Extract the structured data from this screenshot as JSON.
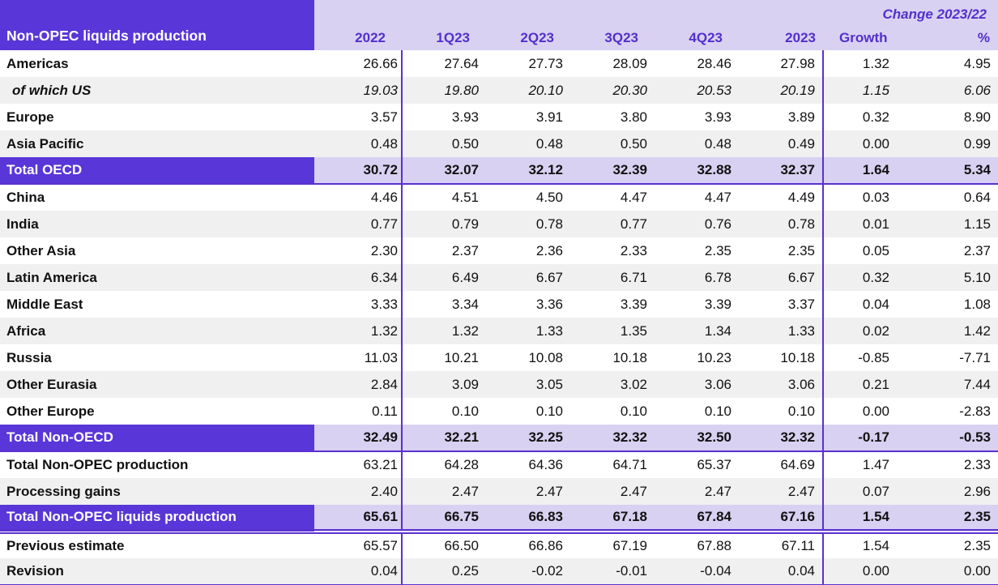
{
  "table": {
    "title": "Non-OPEC liquids production",
    "change_header": "Change 2023/22",
    "columns": [
      "2022",
      "1Q23",
      "2Q23",
      "3Q23",
      "4Q23",
      "2023",
      "Growth",
      "%"
    ],
    "rows": [
      {
        "label": "Americas",
        "style": "plain",
        "rule": "none",
        "values": [
          "26.66",
          "27.64",
          "27.73",
          "28.09",
          "28.46",
          "27.98",
          "1.32",
          "4.95"
        ]
      },
      {
        "label": "of which US",
        "style": "sub",
        "rule": "none",
        "values": [
          "19.03",
          "19.80",
          "20.10",
          "20.30",
          "20.53",
          "20.19",
          "1.15",
          "6.06"
        ]
      },
      {
        "label": "Europe",
        "style": "plain",
        "rule": "none",
        "values": [
          "3.57",
          "3.93",
          "3.91",
          "3.80",
          "3.93",
          "3.89",
          "0.32",
          "8.90"
        ]
      },
      {
        "label": "Asia Pacific",
        "style": "stripe",
        "rule": "none",
        "values": [
          "0.48",
          "0.50",
          "0.48",
          "0.50",
          "0.48",
          "0.49",
          "0.00",
          "0.99"
        ]
      },
      {
        "label": "Total OECD",
        "style": "total",
        "rule": "solid",
        "values": [
          "30.72",
          "32.07",
          "32.12",
          "32.39",
          "32.88",
          "32.37",
          "1.64",
          "5.34"
        ]
      },
      {
        "label": "China",
        "style": "plain",
        "rule": "none",
        "values": [
          "4.46",
          "4.51",
          "4.50",
          "4.47",
          "4.47",
          "4.49",
          "0.03",
          "0.64"
        ]
      },
      {
        "label": "India",
        "style": "stripe",
        "rule": "none",
        "values": [
          "0.77",
          "0.79",
          "0.78",
          "0.77",
          "0.76",
          "0.78",
          "0.01",
          "1.15"
        ]
      },
      {
        "label": "Other Asia",
        "style": "plain",
        "rule": "none",
        "values": [
          "2.30",
          "2.37",
          "2.36",
          "2.33",
          "2.35",
          "2.35",
          "0.05",
          "2.37"
        ]
      },
      {
        "label": "Latin America",
        "style": "stripe",
        "rule": "none",
        "values": [
          "6.34",
          "6.49",
          "6.67",
          "6.71",
          "6.78",
          "6.67",
          "0.32",
          "5.10"
        ]
      },
      {
        "label": "Middle East",
        "style": "plain",
        "rule": "none",
        "values": [
          "3.33",
          "3.34",
          "3.36",
          "3.39",
          "3.39",
          "3.37",
          "0.04",
          "1.08"
        ]
      },
      {
        "label": "Africa",
        "style": "stripe",
        "rule": "none",
        "values": [
          "1.32",
          "1.32",
          "1.33",
          "1.35",
          "1.34",
          "1.33",
          "0.02",
          "1.42"
        ]
      },
      {
        "label": "Russia",
        "style": "plain",
        "rule": "none",
        "values": [
          "11.03",
          "10.21",
          "10.08",
          "10.18",
          "10.23",
          "10.18",
          "-0.85",
          "-7.71"
        ]
      },
      {
        "label": "Other Eurasia",
        "style": "stripe",
        "rule": "none",
        "values": [
          "2.84",
          "3.09",
          "3.05",
          "3.02",
          "3.06",
          "3.06",
          "0.21",
          "7.44"
        ]
      },
      {
        "label": "Other Europe",
        "style": "plain",
        "rule": "none",
        "values": [
          "0.11",
          "0.10",
          "0.10",
          "0.10",
          "0.10",
          "0.10",
          "0.00",
          "-2.83"
        ]
      },
      {
        "label": "Total Non-OECD",
        "style": "total",
        "rule": "solid",
        "values": [
          "32.49",
          "32.21",
          "32.25",
          "32.32",
          "32.50",
          "32.32",
          "-0.17",
          "-0.53"
        ]
      },
      {
        "label": "Total Non-OPEC production",
        "style": "plain",
        "rule": "none",
        "values": [
          "63.21",
          "64.28",
          "64.36",
          "64.71",
          "65.37",
          "64.69",
          "1.47",
          "2.33"
        ]
      },
      {
        "label": "Processing gains",
        "style": "stripe",
        "rule": "none",
        "values": [
          "2.40",
          "2.47",
          "2.47",
          "2.47",
          "2.47",
          "2.47",
          "0.07",
          "2.96"
        ]
      },
      {
        "label": "Total Non-OPEC liquids production",
        "style": "total",
        "rule": "double",
        "values": [
          "65.61",
          "66.75",
          "66.83",
          "67.18",
          "67.84",
          "67.16",
          "1.54",
          "2.35"
        ]
      },
      {
        "label": "Previous estimate",
        "style": "plain",
        "rule": "none",
        "values": [
          "65.57",
          "66.50",
          "66.86",
          "67.19",
          "67.88",
          "67.11",
          "1.54",
          "2.35"
        ]
      },
      {
        "label": "Revision",
        "style": "stripe",
        "rule": "none",
        "values": [
          "0.04",
          "0.25",
          "-0.02",
          "-0.01",
          "-0.04",
          "0.04",
          "0.00",
          "0.00"
        ]
      }
    ],
    "colors": {
      "header_purple": "#5836d8",
      "lavender": "#d9d1f1",
      "stripe_gray": "#f0f0f0",
      "line_purple": "#5b30cf",
      "header_text_purple": "#5230cc"
    }
  },
  "chart_data": {
    "type": "table",
    "title": "Non-OPEC liquids production",
    "column_group_header": "Change 2023/22 (spans Growth and %)",
    "columns": [
      "2022",
      "1Q23",
      "2Q23",
      "3Q23",
      "4Q23",
      "2023",
      "Growth",
      "%"
    ],
    "rows": [
      {
        "label": "Americas",
        "values": [
          26.66,
          27.64,
          27.73,
          28.09,
          28.46,
          27.98,
          1.32,
          4.95
        ]
      },
      {
        "label": "of which US",
        "values": [
          19.03,
          19.8,
          20.1,
          20.3,
          20.53,
          20.19,
          1.15,
          6.06
        ]
      },
      {
        "label": "Europe",
        "values": [
          3.57,
          3.93,
          3.91,
          3.8,
          3.93,
          3.89,
          0.32,
          8.9
        ]
      },
      {
        "label": "Asia Pacific",
        "values": [
          0.48,
          0.5,
          0.48,
          0.5,
          0.48,
          0.49,
          0.0,
          0.99
        ]
      },
      {
        "label": "Total OECD",
        "values": [
          30.72,
          32.07,
          32.12,
          32.39,
          32.88,
          32.37,
          1.64,
          5.34
        ]
      },
      {
        "label": "China",
        "values": [
          4.46,
          4.51,
          4.5,
          4.47,
          4.47,
          4.49,
          0.03,
          0.64
        ]
      },
      {
        "label": "India",
        "values": [
          0.77,
          0.79,
          0.78,
          0.77,
          0.76,
          0.78,
          0.01,
          1.15
        ]
      },
      {
        "label": "Other Asia",
        "values": [
          2.3,
          2.37,
          2.36,
          2.33,
          2.35,
          2.35,
          0.05,
          2.37
        ]
      },
      {
        "label": "Latin America",
        "values": [
          6.34,
          6.49,
          6.67,
          6.71,
          6.78,
          6.67,
          0.32,
          5.1
        ]
      },
      {
        "label": "Middle East",
        "values": [
          3.33,
          3.34,
          3.36,
          3.39,
          3.39,
          3.37,
          0.04,
          1.08
        ]
      },
      {
        "label": "Africa",
        "values": [
          1.32,
          1.32,
          1.33,
          1.35,
          1.34,
          1.33,
          0.02,
          1.42
        ]
      },
      {
        "label": "Russia",
        "values": [
          11.03,
          10.21,
          10.08,
          10.18,
          10.23,
          10.18,
          -0.85,
          -7.71
        ]
      },
      {
        "label": "Other Eurasia",
        "values": [
          2.84,
          3.09,
          3.05,
          3.02,
          3.06,
          3.06,
          0.21,
          7.44
        ]
      },
      {
        "label": "Other Europe",
        "values": [
          0.11,
          0.1,
          0.1,
          0.1,
          0.1,
          0.1,
          0.0,
          -2.83
        ]
      },
      {
        "label": "Total Non-OECD",
        "values": [
          32.49,
          32.21,
          32.25,
          32.32,
          32.5,
          32.32,
          -0.17,
          -0.53
        ]
      },
      {
        "label": "Total Non-OPEC production",
        "values": [
          63.21,
          64.28,
          64.36,
          64.71,
          65.37,
          64.69,
          1.47,
          2.33
        ]
      },
      {
        "label": "Processing gains",
        "values": [
          2.4,
          2.47,
          2.47,
          2.47,
          2.47,
          2.47,
          0.07,
          2.96
        ]
      },
      {
        "label": "Total Non-OPEC liquids production",
        "values": [
          65.61,
          66.75,
          66.83,
          67.18,
          67.84,
          67.16,
          1.54,
          2.35
        ]
      },
      {
        "label": "Previous estimate",
        "values": [
          65.57,
          66.5,
          66.86,
          67.19,
          67.88,
          67.11,
          1.54,
          2.35
        ]
      },
      {
        "label": "Revision",
        "values": [
          0.04,
          0.25,
          -0.02,
          -0.01,
          -0.04,
          0.04,
          0.0,
          0.0
        ]
      }
    ]
  }
}
